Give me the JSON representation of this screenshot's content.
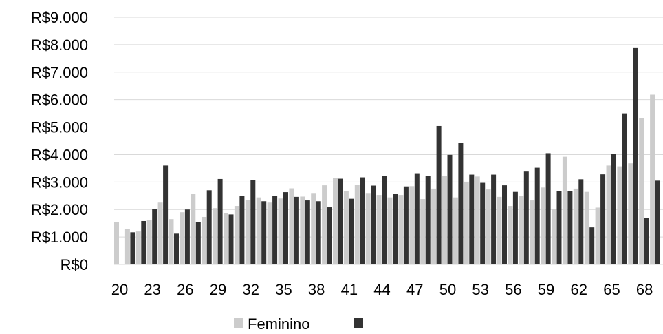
{
  "chart_data": {
    "type": "bar",
    "categories": [
      "20",
      "21",
      "22",
      "23",
      "24",
      "25",
      "26",
      "27",
      "28",
      "29",
      "30",
      "31",
      "32",
      "33",
      "34",
      "35",
      "36",
      "37",
      "38",
      "39",
      "40",
      "41",
      "42",
      "43",
      "44",
      "45",
      "46",
      "47",
      "48",
      "49",
      "50",
      "51",
      "52",
      "53",
      "54",
      "55",
      "56",
      "57",
      "58",
      "59",
      "60",
      "61",
      "62",
      "63",
      "64",
      "65",
      "66",
      "67",
      "68",
      "69"
    ],
    "x_tick_labels": [
      "20",
      "23",
      "26",
      "29",
      "32",
      "35",
      "38",
      "41",
      "44",
      "47",
      "50",
      "53",
      "56",
      "59",
      "62",
      "65",
      "68"
    ],
    "x_tick_every": 3,
    "y_tick_labels": [
      "R$0",
      "R$1.000",
      "R$2.000",
      "R$3.000",
      "R$4.000",
      "R$5.000",
      "R$6.000",
      "R$7.000",
      "R$8.000",
      "R$9.000"
    ],
    "ylim": [
      0,
      9000
    ],
    "y_tick_step": 1000,
    "grid": "horizontal",
    "legend_position": "bottom",
    "series": [
      {
        "name": "Feminino",
        "color": "#cccccc",
        "values": [
          1550,
          1300,
          1200,
          1620,
          2250,
          1650,
          1900,
          2580,
          1730,
          2050,
          1880,
          2130,
          2350,
          2440,
          2250,
          2400,
          2770,
          2470,
          2600,
          2880,
          3150,
          2670,
          2900,
          2600,
          2530,
          2440,
          2530,
          2850,
          2380,
          2760,
          3230,
          2440,
          3000,
          3200,
          2730,
          2460,
          2130,
          2500,
          2330,
          2800,
          2000,
          3920,
          2760,
          2640,
          2070,
          3600,
          3570,
          3680,
          5330,
          6180
        ]
      },
      {
        "name": "",
        "color": "#333333",
        "values": [
          null,
          1170,
          1580,
          2020,
          3600,
          1120,
          2000,
          1550,
          2700,
          3110,
          1820,
          2500,
          3080,
          2300,
          2490,
          2630,
          2460,
          2330,
          2300,
          2080,
          3120,
          2390,
          3170,
          2870,
          3230,
          2580,
          2840,
          3320,
          3220,
          5040,
          3990,
          4420,
          3270,
          2970,
          3270,
          2880,
          2640,
          3380,
          3520,
          4050,
          2670,
          2660,
          3100,
          1350,
          3280,
          4020,
          5500,
          7900,
          1690,
          3050
        ]
      }
    ]
  }
}
